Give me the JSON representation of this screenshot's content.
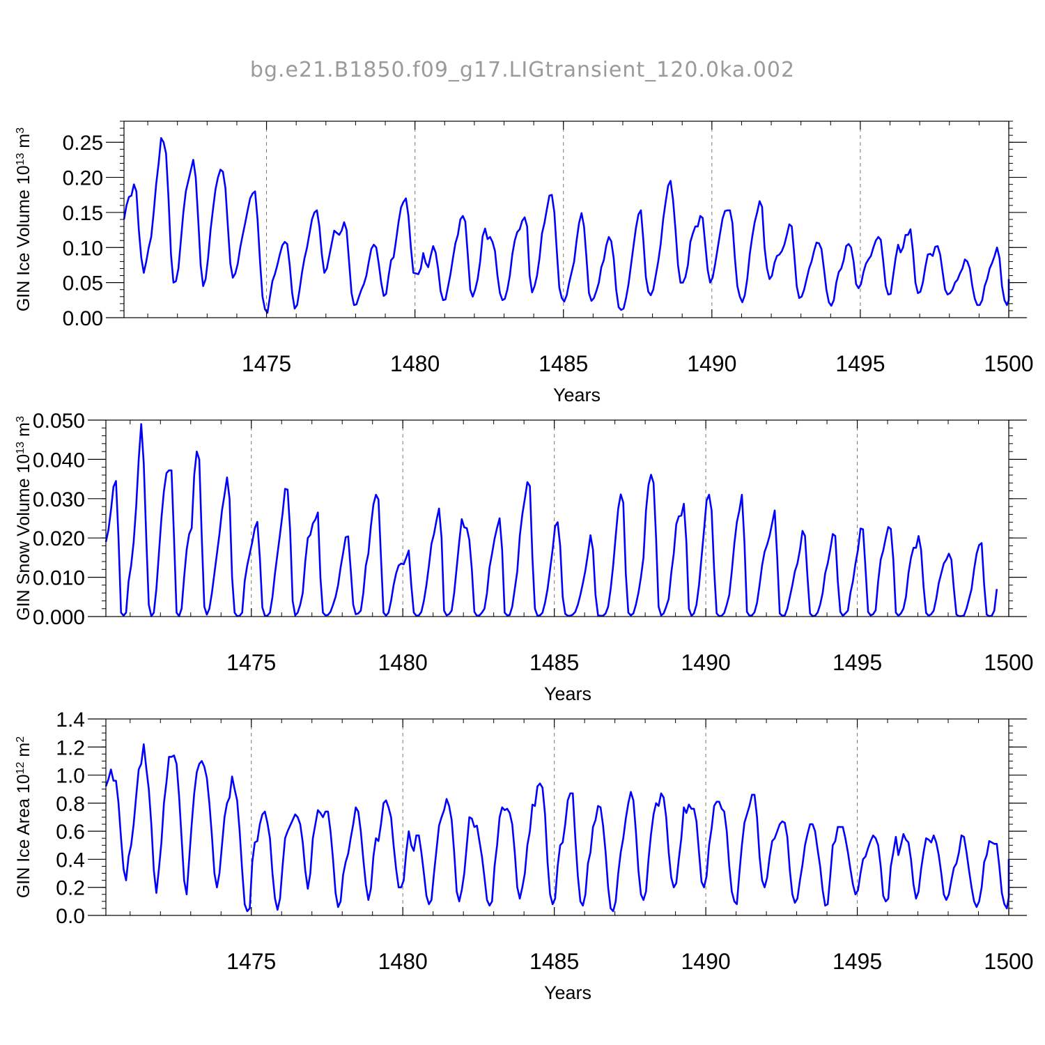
{
  "title": "bg.e21.B1850.f09_g17.LIGtransient_120.0ka.002",
  "line_color": "#0000ff",
  "chart_data": [
    {
      "type": "line",
      "ylabel": {
        "pre": "GIN Ice Volume 10",
        "sup": "13",
        "post": " m",
        "sup2": "3"
      },
      "xlabel": "Years",
      "xlim": [
        1470.2,
        1500
      ],
      "xticks": [
        1475,
        1480,
        1485,
        1490,
        1495,
        1500
      ],
      "ylim": [
        0,
        0.28
      ],
      "yticks": [
        0.0,
        0.05,
        0.1,
        0.15,
        0.2,
        0.25
      ],
      "ytick_labels": [
        "0.00",
        "0.05",
        "0.10",
        "0.15",
        "0.20",
        "0.25"
      ],
      "yminor": 0.01,
      "start_year": 1470.2,
      "step": 0.0833,
      "values": [
        0.14,
        0.16,
        0.172,
        0.174,
        0.19,
        0.18,
        0.125,
        0.085,
        0.064,
        0.08,
        0.1,
        0.115,
        0.15,
        0.19,
        0.22,
        0.256,
        0.25,
        0.234,
        0.17,
        0.09,
        0.05,
        0.052,
        0.07,
        0.11,
        0.15,
        0.18,
        0.195,
        0.21,
        0.225,
        0.2,
        0.14,
        0.075,
        0.045,
        0.055,
        0.085,
        0.125,
        0.155,
        0.183,
        0.2,
        0.211,
        0.208,
        0.185,
        0.13,
        0.077,
        0.057,
        0.063,
        0.077,
        0.1,
        0.118,
        0.135,
        0.153,
        0.17,
        0.177,
        0.18,
        0.14,
        0.08,
        0.03,
        0.012,
        0.007,
        0.03,
        0.052,
        0.062,
        0.075,
        0.09,
        0.103,
        0.108,
        0.105,
        0.075,
        0.035,
        0.013,
        0.018,
        0.04,
        0.065,
        0.085,
        0.1,
        0.12,
        0.14,
        0.15,
        0.153,
        0.13,
        0.09,
        0.064,
        0.07,
        0.088,
        0.106,
        0.124,
        0.121,
        0.118,
        0.124,
        0.136,
        0.125,
        0.08,
        0.035,
        0.018,
        0.019,
        0.03,
        0.04,
        0.048,
        0.06,
        0.08,
        0.098,
        0.104,
        0.1,
        0.077,
        0.05,
        0.031,
        0.034,
        0.06,
        0.082,
        0.086,
        0.11,
        0.136,
        0.157,
        0.165,
        0.17,
        0.145,
        0.1,
        0.064,
        0.063,
        0.062,
        0.07,
        0.092,
        0.078,
        0.072,
        0.088,
        0.102,
        0.093,
        0.07,
        0.038,
        0.025,
        0.026,
        0.044,
        0.062,
        0.085,
        0.106,
        0.118,
        0.14,
        0.145,
        0.137,
        0.09,
        0.04,
        0.03,
        0.04,
        0.055,
        0.08,
        0.116,
        0.127,
        0.112,
        0.115,
        0.108,
        0.095,
        0.06,
        0.035,
        0.025,
        0.027,
        0.04,
        0.06,
        0.09,
        0.11,
        0.122,
        0.126,
        0.138,
        0.143,
        0.13,
        0.06,
        0.036,
        0.045,
        0.06,
        0.085,
        0.12,
        0.135,
        0.155,
        0.174,
        0.175,
        0.15,
        0.095,
        0.043,
        0.028,
        0.023,
        0.032,
        0.05,
        0.065,
        0.08,
        0.11,
        0.135,
        0.149,
        0.13,
        0.085,
        0.035,
        0.024,
        0.028,
        0.038,
        0.05,
        0.072,
        0.082,
        0.103,
        0.115,
        0.109,
        0.085,
        0.04,
        0.015,
        0.011,
        0.013,
        0.028,
        0.048,
        0.075,
        0.102,
        0.128,
        0.147,
        0.153,
        0.11,
        0.058,
        0.037,
        0.032,
        0.04,
        0.06,
        0.08,
        0.105,
        0.14,
        0.165,
        0.188,
        0.195,
        0.168,
        0.125,
        0.075,
        0.05,
        0.05,
        0.058,
        0.075,
        0.108,
        0.12,
        0.13,
        0.13,
        0.145,
        0.142,
        0.105,
        0.068,
        0.05,
        0.057,
        0.076,
        0.098,
        0.12,
        0.141,
        0.152,
        0.153,
        0.153,
        0.135,
        0.085,
        0.045,
        0.03,
        0.022,
        0.032,
        0.055,
        0.09,
        0.115,
        0.136,
        0.15,
        0.166,
        0.158,
        0.1,
        0.07,
        0.055,
        0.06,
        0.078,
        0.088,
        0.09,
        0.095,
        0.104,
        0.118,
        0.133,
        0.13,
        0.09,
        0.045,
        0.028,
        0.03,
        0.04,
        0.055,
        0.07,
        0.08,
        0.095,
        0.107,
        0.106,
        0.098,
        0.07,
        0.04,
        0.022,
        0.017,
        0.025,
        0.05,
        0.065,
        0.07,
        0.082,
        0.102,
        0.105,
        0.1,
        0.08,
        0.048,
        0.042,
        0.048,
        0.065,
        0.077,
        0.083,
        0.088,
        0.1,
        0.11,
        0.115,
        0.111,
        0.08,
        0.045,
        0.033,
        0.034,
        0.06,
        0.085,
        0.104,
        0.093,
        0.1,
        0.118,
        0.118,
        0.126,
        0.095,
        0.05,
        0.035,
        0.037,
        0.05,
        0.072,
        0.09,
        0.091,
        0.088,
        0.101,
        0.102,
        0.09,
        0.065,
        0.04,
        0.033,
        0.035,
        0.04,
        0.05,
        0.054,
        0.063,
        0.07,
        0.083,
        0.08,
        0.07,
        0.045,
        0.027,
        0.018,
        0.018,
        0.025,
        0.045,
        0.055,
        0.07,
        0.078,
        0.088,
        0.1,
        0.085,
        0.045,
        0.025,
        0.018,
        0.025,
        0.055
      ]
    },
    {
      "type": "line",
      "ylabel": {
        "pre": "GIN Snow Volume 10",
        "sup": "13",
        "post": " m",
        "sup2": "3"
      },
      "xlabel": "Years",
      "xlim": [
        1470.2,
        1500
      ],
      "xticks": [
        1475,
        1480,
        1485,
        1490,
        1495,
        1500
      ],
      "ylim": [
        0,
        0.05
      ],
      "yticks": [
        0.0,
        0.01,
        0.02,
        0.03,
        0.04,
        0.05
      ],
      "ytick_labels": [
        "0.000",
        "0.010",
        "0.020",
        "0.030",
        "0.040",
        "0.050"
      ],
      "yminor": 0.002,
      "start_year": 1470.2,
      "step": 0.0833,
      "values": [
        0.019,
        0.022,
        0.027,
        0.033,
        0.0345,
        0.02,
        0.001,
        0.0002,
        0.001,
        0.009,
        0.013,
        0.019,
        0.028,
        0.04,
        0.049,
        0.039,
        0.02,
        0.003,
        0.0001,
        0.001,
        0.007,
        0.016,
        0.025,
        0.032,
        0.0365,
        0.0372,
        0.0372,
        0.02,
        0.001,
        0.0001,
        0.002,
        0.01,
        0.017,
        0.021,
        0.0225,
        0.036,
        0.042,
        0.04,
        0.02,
        0.0025,
        0.0005,
        0.002,
        0.006,
        0.011,
        0.016,
        0.021,
        0.027,
        0.031,
        0.0354,
        0.03,
        0.01,
        0.001,
        0.0001,
        0.0002,
        0.001,
        0.009,
        0.013,
        0.016,
        0.019,
        0.0225,
        0.0241,
        0.015,
        0.0023,
        0.0002,
        0.0002,
        0.001,
        0.005,
        0.011,
        0.016,
        0.021,
        0.0262,
        0.0325,
        0.0323,
        0.022,
        0.004,
        0.0003,
        0.001,
        0.003,
        0.006,
        0.014,
        0.02,
        0.0208,
        0.0237,
        0.0247,
        0.0265,
        0.01,
        0.001,
        0.0003,
        0.0004,
        0.0012,
        0.003,
        0.005,
        0.008,
        0.0125,
        0.0162,
        0.0202,
        0.0204,
        0.012,
        0.003,
        0.0006,
        0.0008,
        0.0015,
        0.006,
        0.013,
        0.016,
        0.023,
        0.0285,
        0.031,
        0.0298,
        0.015,
        0.001,
        0.0002,
        0.001,
        0.004,
        0.008,
        0.011,
        0.013,
        0.0135,
        0.0133,
        0.015,
        0.0168,
        0.008,
        0.001,
        0.0002,
        0.0003,
        0.0012,
        0.004,
        0.008,
        0.013,
        0.0185,
        0.021,
        0.0245,
        0.0275,
        0.02,
        0.0015,
        0.0003,
        0.0006,
        0.0015,
        0.006,
        0.0125,
        0.019,
        0.0248,
        0.0227,
        0.0225,
        0.0195,
        0.012,
        0.0012,
        0.0002,
        0.0003,
        0.001,
        0.002,
        0.006,
        0.0125,
        0.016,
        0.0198,
        0.0226,
        0.025,
        0.017,
        0.001,
        0.0003,
        0.0004,
        0.0025,
        0.007,
        0.0115,
        0.0205,
        0.026,
        0.03,
        0.0342,
        0.0332,
        0.015,
        0.002,
        0.0002,
        0.0003,
        0.001,
        0.0035,
        0.007,
        0.012,
        0.017,
        0.023,
        0.024,
        0.018,
        0.005,
        0.0007,
        0.0002,
        0.0002,
        0.0005,
        0.0012,
        0.003,
        0.0055,
        0.0085,
        0.0118,
        0.016,
        0.0207,
        0.017,
        0.0055,
        0.0003,
        0.0002,
        0.0002,
        0.0008,
        0.0025,
        0.007,
        0.013,
        0.0205,
        0.0275,
        0.0311,
        0.029,
        0.011,
        0.001,
        0.0003,
        0.0008,
        0.003,
        0.006,
        0.01,
        0.015,
        0.027,
        0.0335,
        0.0361,
        0.034,
        0.02,
        0.0025,
        0.0003,
        0.0008,
        0.0025,
        0.0045,
        0.011,
        0.016,
        0.0235,
        0.0255,
        0.0257,
        0.0287,
        0.019,
        0.002,
        0.0002,
        0.0008,
        0.003,
        0.008,
        0.015,
        0.022,
        0.0295,
        0.031,
        0.027,
        0.012,
        0.0008,
        0.0001,
        0.0002,
        0.0009,
        0.003,
        0.0055,
        0.0115,
        0.0185,
        0.024,
        0.027,
        0.031,
        0.019,
        0.0012,
        0.0002,
        0.0003,
        0.0011,
        0.0035,
        0.008,
        0.013,
        0.0165,
        0.0183,
        0.0206,
        0.0238,
        0.027,
        0.015,
        0.0008,
        0.0002,
        0.0003,
        0.002,
        0.005,
        0.008,
        0.0115,
        0.0135,
        0.017,
        0.0218,
        0.0205,
        0.01,
        0.0008,
        0.0001,
        0.0002,
        0.001,
        0.003,
        0.006,
        0.011,
        0.0135,
        0.017,
        0.021,
        0.0205,
        0.009,
        0.0012,
        0.0002,
        0.0008,
        0.0015,
        0.006,
        0.009,
        0.0135,
        0.017,
        0.0224,
        0.0222,
        0.012,
        0.0012,
        0.0003,
        0.0006,
        0.0016,
        0.009,
        0.0145,
        0.0168,
        0.02,
        0.0228,
        0.0223,
        0.0145,
        0.001,
        0.0002,
        0.0008,
        0.002,
        0.005,
        0.011,
        0.015,
        0.0175,
        0.0175,
        0.0205,
        0.017,
        0.0075,
        0.0009,
        0.0002,
        0.0006,
        0.0015,
        0.0045,
        0.0085,
        0.011,
        0.0135,
        0.0145,
        0.016,
        0.0145,
        0.007,
        0.0005,
        0.0001,
        0.0001,
        0.0003,
        0.002,
        0.0045,
        0.007,
        0.012,
        0.016,
        0.0182,
        0.0187,
        0.008,
        0.0005,
        0.0001,
        0.0002,
        0.0015,
        0.007
      ]
    },
    {
      "type": "line",
      "ylabel": {
        "pre": "GIN Ice Area 10",
        "sup": "12",
        "post": " m",
        "sup2": "2"
      },
      "xlabel": "Years",
      "xlim": [
        1470.2,
        1500
      ],
      "xticks": [
        1475,
        1480,
        1485,
        1490,
        1495,
        1500
      ],
      "ylim": [
        0,
        1.4
      ],
      "yticks": [
        0.0,
        0.2,
        0.4,
        0.6,
        0.8,
        1.0,
        1.2,
        1.4
      ],
      "ytick_labels": [
        "0.0",
        "0.2",
        "0.4",
        "0.6",
        "0.8",
        "1.0",
        "1.2",
        "1.4"
      ],
      "yminor": 0.05,
      "start_year": 1470.2,
      "step": 0.0833,
      "values": [
        0.92,
        0.97,
        1.04,
        0.96,
        0.96,
        0.8,
        0.55,
        0.33,
        0.25,
        0.42,
        0.5,
        0.65,
        0.85,
        1.04,
        1.08,
        1.22,
        1.05,
        0.9,
        0.65,
        0.32,
        0.16,
        0.33,
        0.52,
        0.8,
        0.95,
        1.13,
        1.13,
        1.14,
        1.08,
        0.85,
        0.55,
        0.25,
        0.15,
        0.4,
        0.65,
        0.87,
        1.02,
        1.08,
        1.1,
        1.06,
        0.98,
        0.8,
        0.57,
        0.3,
        0.2,
        0.3,
        0.5,
        0.7,
        0.8,
        0.84,
        0.99,
        0.9,
        0.82,
        0.6,
        0.32,
        0.08,
        0.03,
        0.05,
        0.38,
        0.52,
        0.53,
        0.65,
        0.72,
        0.74,
        0.66,
        0.55,
        0.3,
        0.12,
        0.04,
        0.12,
        0.35,
        0.55,
        0.6,
        0.64,
        0.68,
        0.72,
        0.7,
        0.65,
        0.52,
        0.32,
        0.19,
        0.3,
        0.55,
        0.65,
        0.75,
        0.73,
        0.7,
        0.74,
        0.74,
        0.6,
        0.4,
        0.16,
        0.06,
        0.1,
        0.29,
        0.38,
        0.44,
        0.55,
        0.65,
        0.77,
        0.74,
        0.6,
        0.4,
        0.22,
        0.11,
        0.19,
        0.42,
        0.55,
        0.53,
        0.65,
        0.8,
        0.82,
        0.77,
        0.7,
        0.5,
        0.33,
        0.2,
        0.2,
        0.25,
        0.45,
        0.6,
        0.5,
        0.46,
        0.57,
        0.57,
        0.45,
        0.3,
        0.14,
        0.08,
        0.11,
        0.3,
        0.47,
        0.64,
        0.7,
        0.75,
        0.83,
        0.78,
        0.68,
        0.45,
        0.17,
        0.1,
        0.18,
        0.3,
        0.5,
        0.7,
        0.69,
        0.63,
        0.64,
        0.53,
        0.42,
        0.27,
        0.11,
        0.07,
        0.1,
        0.35,
        0.5,
        0.7,
        0.77,
        0.75,
        0.76,
        0.73,
        0.65,
        0.45,
        0.2,
        0.12,
        0.2,
        0.3,
        0.5,
        0.6,
        0.79,
        0.78,
        0.92,
        0.94,
        0.91,
        0.72,
        0.38,
        0.15,
        0.08,
        0.12,
        0.35,
        0.5,
        0.52,
        0.65,
        0.82,
        0.87,
        0.87,
        0.55,
        0.28,
        0.1,
        0.07,
        0.15,
        0.37,
        0.45,
        0.63,
        0.68,
        0.78,
        0.77,
        0.64,
        0.45,
        0.2,
        0.05,
        0.03,
        0.1,
        0.3,
        0.45,
        0.55,
        0.69,
        0.8,
        0.88,
        0.82,
        0.6,
        0.32,
        0.15,
        0.11,
        0.17,
        0.4,
        0.58,
        0.72,
        0.8,
        0.78,
        0.87,
        0.84,
        0.7,
        0.45,
        0.27,
        0.2,
        0.23,
        0.4,
        0.55,
        0.77,
        0.73,
        0.79,
        0.76,
        0.76,
        0.67,
        0.45,
        0.24,
        0.2,
        0.28,
        0.5,
        0.62,
        0.78,
        0.81,
        0.81,
        0.76,
        0.74,
        0.6,
        0.35,
        0.17,
        0.1,
        0.08,
        0.3,
        0.5,
        0.66,
        0.72,
        0.78,
        0.86,
        0.86,
        0.7,
        0.42,
        0.25,
        0.2,
        0.27,
        0.42,
        0.53,
        0.55,
        0.6,
        0.65,
        0.67,
        0.66,
        0.56,
        0.32,
        0.15,
        0.09,
        0.12,
        0.25,
        0.36,
        0.5,
        0.58,
        0.65,
        0.65,
        0.6,
        0.47,
        0.35,
        0.18,
        0.07,
        0.08,
        0.28,
        0.5,
        0.53,
        0.63,
        0.63,
        0.63,
        0.55,
        0.45,
        0.33,
        0.22,
        0.15,
        0.18,
        0.3,
        0.4,
        0.42,
        0.48,
        0.53,
        0.57,
        0.55,
        0.5,
        0.35,
        0.14,
        0.1,
        0.12,
        0.35,
        0.45,
        0.56,
        0.43,
        0.5,
        0.58,
        0.54,
        0.52,
        0.4,
        0.22,
        0.12,
        0.17,
        0.33,
        0.45,
        0.55,
        0.54,
        0.52,
        0.57,
        0.52,
        0.43,
        0.3,
        0.15,
        0.11,
        0.15,
        0.25,
        0.34,
        0.37,
        0.45,
        0.57,
        0.56,
        0.45,
        0.32,
        0.2,
        0.1,
        0.06,
        0.1,
        0.2,
        0.38,
        0.43,
        0.53,
        0.52,
        0.51,
        0.51,
        0.35,
        0.16,
        0.08,
        0.05,
        0.13,
        0.22,
        0.4
      ]
    }
  ]
}
